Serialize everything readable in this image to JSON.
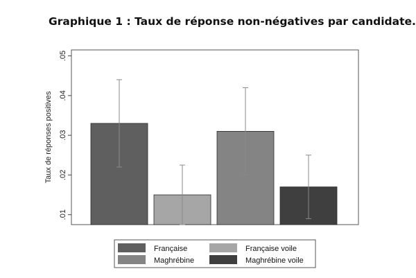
{
  "title": "Graphique 1 : Taux de réponse non-négatives par candidate.",
  "chart_data": {
    "type": "bar",
    "title": "Graphique 1 : Taux de réponse non-négatives par candidate.",
    "xlabel": "",
    "ylabel": "Taux de réponses positives",
    "ylim": [
      0.0075,
      0.0515
    ],
    "yticks": [
      0.01,
      0.02,
      0.03,
      0.04,
      0.05
    ],
    "ytick_labels": [
      ".01",
      ".02",
      ".03",
      ".04",
      ".05"
    ],
    "grid": false,
    "legend_position": "bottom",
    "series": [
      {
        "name": "Française",
        "value": 0.033,
        "err_low": 0.022,
        "err_high": 0.044,
        "color": "#5f5f5f"
      },
      {
        "name": "Française voile",
        "value": 0.015,
        "err_low": 0.0075,
        "err_high": 0.0225,
        "color": "#a6a6a6"
      },
      {
        "name": "Maghrébine",
        "value": 0.031,
        "err_low": 0.02,
        "err_high": 0.042,
        "color": "#848484"
      },
      {
        "name": "Maghrébine voile",
        "value": 0.017,
        "err_low": 0.009,
        "err_high": 0.025,
        "color": "#3f3f3f"
      }
    ]
  }
}
